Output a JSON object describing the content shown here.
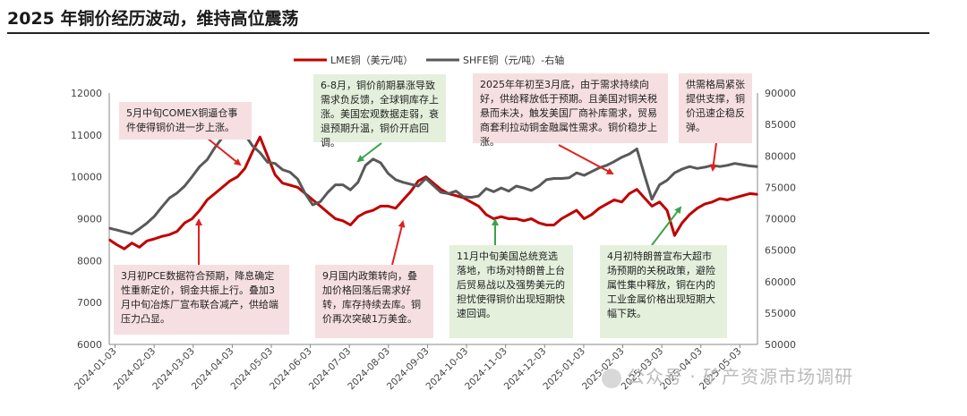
{
  "title": "2025 年铜价经历波动，维持高位震荡",
  "watermark": "公众号 · 矿产资源市场调研",
  "chart_data": {
    "type": "line",
    "legend": [
      {
        "name": "LME铜（美元/吨）",
        "color": "#c00000",
        "axis": "left"
      },
      {
        "name": "SHFE铜（元/吨）-右轴",
        "color": "#595959",
        "axis": "right"
      }
    ],
    "y_left": {
      "min": 6000,
      "max": 12000,
      "ticks": [
        "6000",
        "7000",
        "8000",
        "9000",
        "10000",
        "11000",
        "12000"
      ]
    },
    "y_right": {
      "min": 50000,
      "max": 90000,
      "ticks": [
        "50000",
        "55000",
        "60000",
        "65000",
        "70000",
        "75000",
        "80000",
        "85000",
        "90000"
      ]
    },
    "x_ticks": [
      "2024-01-03",
      "2024-02-03",
      "2024-03-03",
      "2024-04-03",
      "2024-05-03",
      "2024-06-03",
      "2024-07-03",
      "2024-08-03",
      "2024-09-03",
      "2024-10-03",
      "2024-11-03",
      "2024-12-03",
      "2025-01-03",
      "2025-02-03",
      "2025-03-03",
      "2025-04-03",
      "2025-05-03"
    ],
    "series": [
      {
        "name": "LME铜（美元/吨）",
        "axis": "left",
        "values": [
          8500,
          8380,
          8280,
          8420,
          8320,
          8470,
          8520,
          8580,
          8620,
          8700,
          8900,
          9000,
          9200,
          9450,
          9600,
          9750,
          9900,
          10000,
          10200,
          10600,
          10950,
          10500,
          10050,
          9850,
          9800,
          9750,
          9600,
          9450,
          9300,
          9150,
          9000,
          8950,
          8850,
          9050,
          9150,
          9200,
          9300,
          9300,
          9250,
          9450,
          9650,
          9900,
          10000,
          9850,
          9700,
          9600,
          9550,
          9500,
          9400,
          9300,
          9100,
          9000,
          9050,
          9000,
          9000,
          8950,
          9000,
          8900,
          8850,
          8850,
          9000,
          9100,
          9200,
          9000,
          9100,
          9250,
          9350,
          9450,
          9400,
          9600,
          9700,
          9500,
          9300,
          9400,
          9200,
          8600,
          8900,
          9100,
          9250,
          9350,
          9400,
          9480,
          9450,
          9500,
          9550,
          9600,
          9580
        ]
      },
      {
        "name": "SHFE铜（元/吨）-右轴",
        "axis": "right",
        "values": [
          68500,
          68200,
          67900,
          67600,
          68400,
          69300,
          70400,
          71900,
          73300,
          74100,
          75200,
          76700,
          78300,
          79400,
          81300,
          82900,
          84300,
          85600,
          83400,
          81600,
          80500,
          79000,
          78800,
          77800,
          77400,
          76300,
          74000,
          72200,
          72700,
          74200,
          75400,
          75400,
          74600,
          75800,
          78500,
          79500,
          78900,
          77200,
          76200,
          75800,
          75500,
          75200,
          76400,
          75300,
          74200,
          74000,
          74400,
          73500,
          73400,
          73600,
          74800,
          74300,
          74900,
          74400,
          75200,
          74900,
          74500,
          75200,
          76200,
          76400,
          76400,
          76500,
          77300,
          76900,
          77500,
          78100,
          78500,
          79100,
          79800,
          80300,
          81100,
          77000,
          73100,
          75400,
          76100,
          77300,
          77900,
          78300,
          78000,
          78200,
          78500,
          78300,
          78500,
          78800,
          78600,
          78400,
          78300
        ]
      }
    ]
  },
  "annotations": [
    {
      "id": "may",
      "text": "5月中旬COMEX铜逼仓事件使得铜价进一步上涨。"
    },
    {
      "id": "jun-aug",
      "text": "6-8月，铜价前期暴涨导致需求负反馈，全球铜库存上涨。美国宏观数据走弱，衰退预期升温，铜价开启回调。"
    },
    {
      "id": "early-2025",
      "text": "2025年年初至3月底，由于需求持续向好，供给释放低于预期。且美国对铜关税悬而未决，触发美国厂商补库需求，贸易商套利拉动铜金融属性需求。铜价稳步上涨。"
    },
    {
      "id": "rebound",
      "text": "供需格局紧张提供支撑，铜价迅速企稳反弹。"
    },
    {
      "id": "march",
      "text": "3月初PCE数据符合预期，降息确定性重新定价，铜金共振上行。叠加3月中旬冶炼厂宣布联合减产，供给端压力凸显。"
    },
    {
      "id": "sep",
      "text": "9月国内政策转向，叠加价格回落后需求好转，库存持续去库。铜价再次突破1万美金。"
    },
    {
      "id": "nov",
      "text": "11月中旬美国总统竞选落地，市场对特朗普上台后贸易战以及强势美元的担忧使得铜价出现短期快速回调。"
    },
    {
      "id": "apr",
      "text": "4月初特朗普宣布大超市场预期的关税政策，避险属性集中释放，铜在内的工业金属价格出现短期大幅下跌。"
    }
  ]
}
